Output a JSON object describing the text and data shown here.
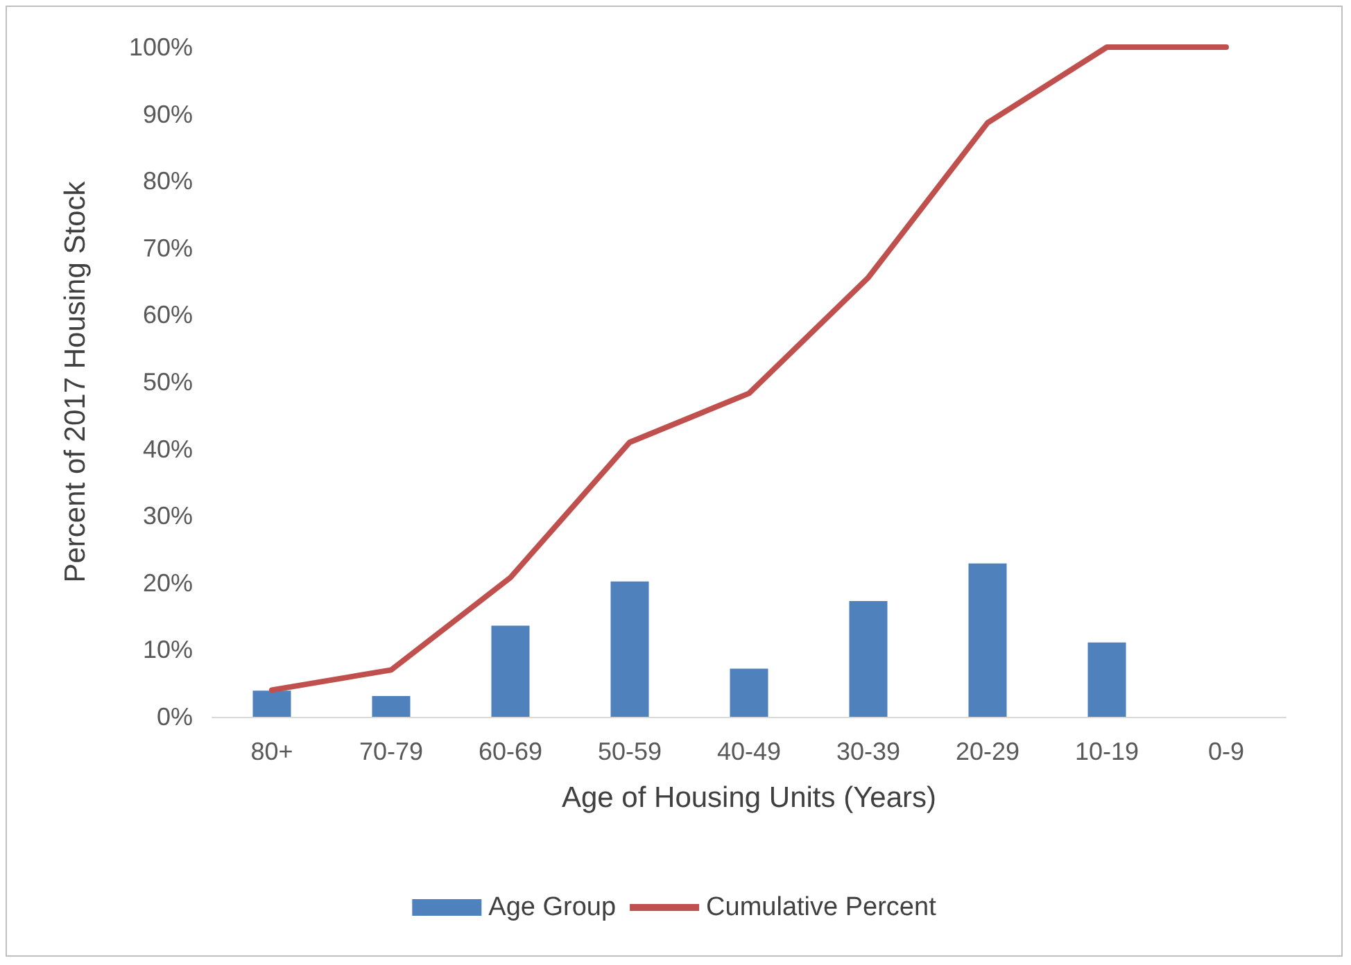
{
  "chart_data": {
    "type": "bar",
    "xlabel": "Age of Housing Units (Years)",
    "ylabel": "Percent of 2017 Housing Stock",
    "categories": [
      "80+",
      "70-79",
      "60-69",
      "50-59",
      "40-49",
      "30-39",
      "20-29",
      "10-19",
      "0-9"
    ],
    "series": [
      {
        "name": "Age Group",
        "color": "#4f81bd",
        "values": [
          3.9,
          3.1,
          13.6,
          20.2,
          7.2,
          17.3,
          22.9,
          11.1,
          0
        ]
      },
      {
        "name": "Cumulative Percent",
        "type": "line",
        "color": "#c0504d",
        "values": [
          4,
          7,
          20.8,
          41,
          48.3,
          65.6,
          88.7,
          100,
          100
        ]
      }
    ],
    "ylim": [
      0,
      100
    ],
    "yticks": [
      {
        "value": 0,
        "label": "0%"
      },
      {
        "value": 10,
        "label": "10%"
      },
      {
        "value": 20,
        "label": "20%"
      },
      {
        "value": 30,
        "label": "30%"
      },
      {
        "value": 40,
        "label": "40%"
      },
      {
        "value": 50,
        "label": "50%"
      },
      {
        "value": 60,
        "label": "60%"
      },
      {
        "value": 70,
        "label": "70%"
      },
      {
        "value": 80,
        "label": "80%"
      },
      {
        "value": 90,
        "label": "90%"
      },
      {
        "value": 100,
        "label": "100%"
      }
    ],
    "grid": false,
    "legend": "bottom",
    "marker": "none",
    "line_style": "solid"
  }
}
